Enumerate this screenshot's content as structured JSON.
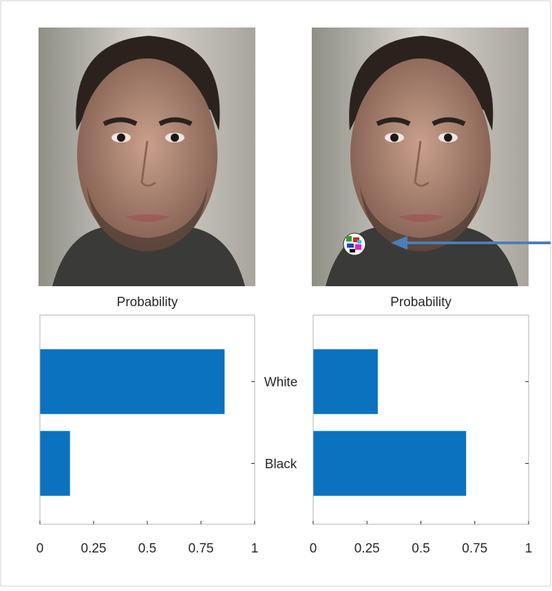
{
  "chart_data": [
    {
      "type": "barh",
      "title": "Probability",
      "categories": [
        "White",
        "Black"
      ],
      "values": [
        0.86,
        0.14
      ],
      "color": "#0b72bf",
      "xlim": [
        0,
        1
      ],
      "xticks": [
        0,
        0.25,
        0.5,
        0.75,
        1
      ]
    },
    {
      "type": "barh",
      "title": "Probability",
      "values": [
        0.3,
        0.71
      ],
      "color": "#0b72bf",
      "xlim": [
        0,
        1
      ],
      "xticks": [
        0,
        0.25,
        0.5,
        0.75,
        1
      ]
    }
  ]
}
